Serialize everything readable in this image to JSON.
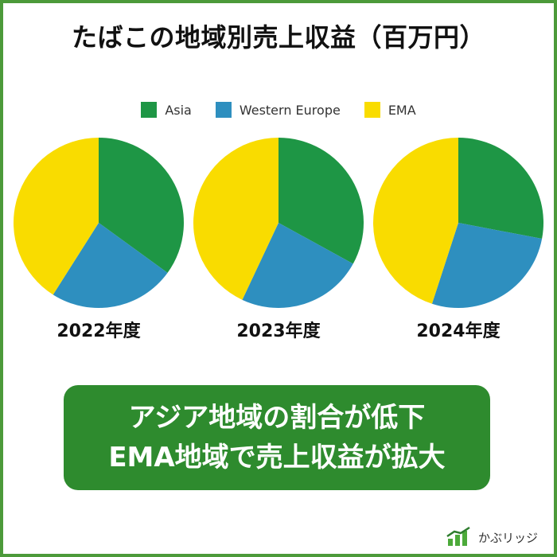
{
  "title": "たばこの地域別売上収益（百万円）",
  "callout": {
    "line1": "アジア地域の割合が低下",
    "line2": "EMA地域で売上収益が拡大"
  },
  "brand": {
    "name": "かぶリッジ",
    "icon": "chart-bars-icon"
  },
  "colors": {
    "Asia": "#1e9645",
    "Western Europe": "#2e8fbf",
    "EMA": "#f9dc00",
    "accent": "#2e8b2e"
  },
  "chart_data": {
    "type": "pie",
    "title": "たばこの地域別売上収益（百万円）",
    "legend_position": "top",
    "series_names": [
      "Asia",
      "Western Europe",
      "EMA"
    ],
    "charts": [
      {
        "label": "2022年度",
        "values": [
          35,
          24,
          41
        ]
      },
      {
        "label": "2023年度",
        "values": [
          33,
          24,
          43
        ]
      },
      {
        "label": "2024年度",
        "values": [
          28,
          27,
          45
        ]
      }
    ]
  }
}
